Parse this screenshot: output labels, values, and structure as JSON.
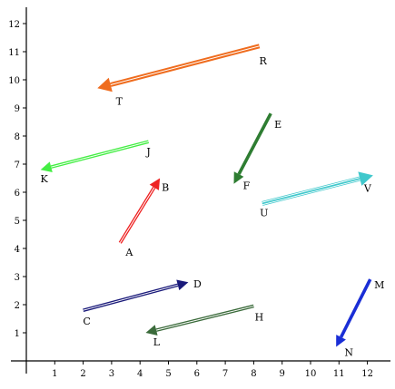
{
  "axes": {
    "x_ticks": [
      "1",
      "2",
      "3",
      "4",
      "5",
      "6",
      "7",
      "8",
      "9",
      "10",
      "11",
      "12"
    ],
    "y_ticks": [
      "1",
      "2",
      "3",
      "4",
      "5",
      "6",
      "7",
      "8",
      "9",
      "10",
      "11",
      "12"
    ],
    "x_range": [
      0,
      12.8
    ],
    "y_range": [
      0,
      12.8
    ],
    "color": "#000000"
  },
  "vectors": [
    {
      "name": "AB",
      "tail": {
        "x": 3.3,
        "y": 4.2,
        "label": "A"
      },
      "head": {
        "x": 4.7,
        "y": 6.5,
        "label": "B"
      },
      "color": "#ee2222",
      "style": "double",
      "thickness": "medium"
    },
    {
      "name": "CD",
      "tail": {
        "x": 2.0,
        "y": 1.8,
        "label": "C"
      },
      "head": {
        "x": 5.7,
        "y": 2.8,
        "label": "D"
      },
      "color": "#1a1a7a",
      "style": "double",
      "thickness": "medium"
    },
    {
      "name": "EF",
      "tail": {
        "x": 8.6,
        "y": 8.8,
        "label": "E"
      },
      "head": {
        "x": 7.3,
        "y": 6.3,
        "label": "F"
      },
      "color": "#2e7d32",
      "style": "solid",
      "thickness": "medium"
    },
    {
      "name": "HL",
      "tail": {
        "x": 8.0,
        "y": 1.95,
        "label": "H"
      },
      "head": {
        "x": 4.2,
        "y": 1.0,
        "label": "L"
      },
      "color": "#3b6b3b",
      "style": "double",
      "thickness": "medium"
    },
    {
      "name": "JK",
      "tail": {
        "x": 4.3,
        "y": 7.8,
        "label": "J"
      },
      "head": {
        "x": 0.5,
        "y": 6.8,
        "label": "K"
      },
      "color": "#44ee44",
      "style": "double",
      "thickness": "medium"
    },
    {
      "name": "MN",
      "tail": {
        "x": 12.1,
        "y": 2.9,
        "label": "M"
      },
      "head": {
        "x": 10.9,
        "y": 0.5,
        "label": "N"
      },
      "color": "#1a2ed6",
      "style": "solid",
      "thickness": "medium"
    },
    {
      "name": "RT",
      "tail": {
        "x": 8.2,
        "y": 11.2,
        "label": "R"
      },
      "head": {
        "x": 2.5,
        "y": 9.7,
        "label": "T"
      },
      "color": "#ef6c1e",
      "style": "double",
      "thickness": "thick"
    },
    {
      "name": "UV",
      "tail": {
        "x": 8.3,
        "y": 5.6,
        "label": "U"
      },
      "head": {
        "x": 12.2,
        "y": 6.6,
        "label": "V"
      },
      "color": "#40c8cc",
      "style": "triple",
      "thickness": "thick"
    }
  ]
}
